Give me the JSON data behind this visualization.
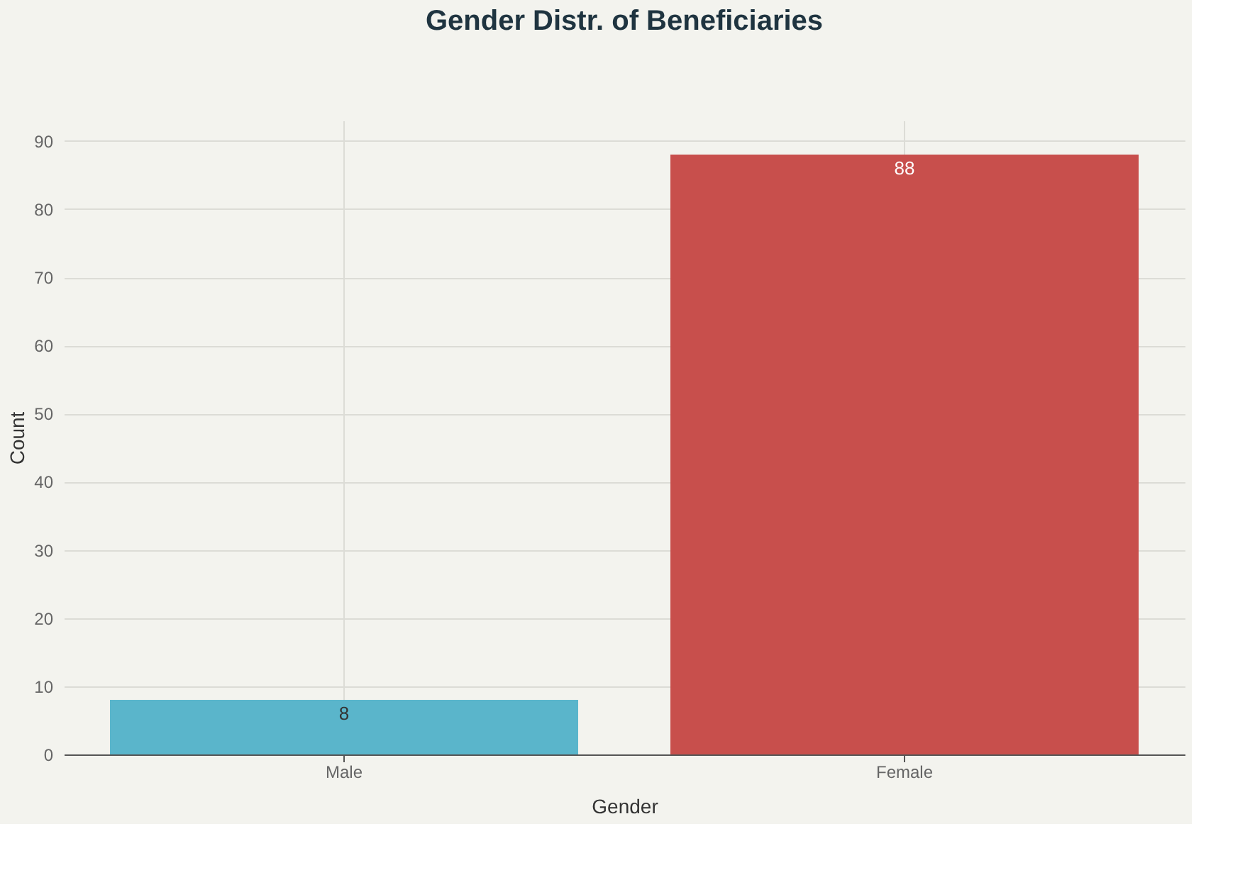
{
  "chart_data": {
    "type": "bar",
    "title": "Gender Distr. of Beneficiaries",
    "xlabel": "Gender",
    "ylabel": "Count",
    "categories": [
      "Male",
      "Female"
    ],
    "values": [
      8,
      88
    ],
    "colors": [
      "#5ab5cb",
      "#c84f4c"
    ],
    "ylim": [
      0,
      93
    ],
    "yticks": [
      0,
      10,
      20,
      30,
      40,
      50,
      60,
      70,
      80,
      90
    ],
    "grid": true,
    "data_labels": true
  }
}
